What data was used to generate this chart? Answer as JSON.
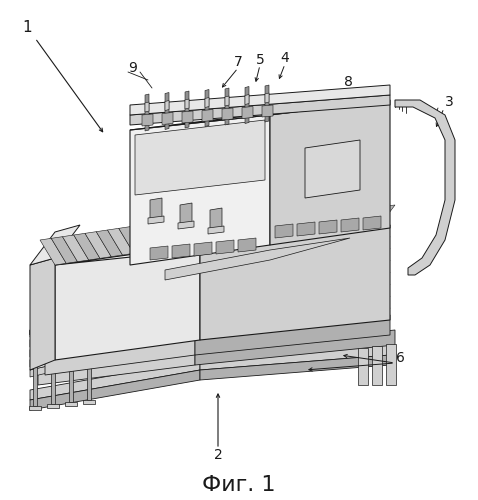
{
  "caption": "Фиг. 1",
  "caption_fontsize": 16,
  "bg_color": "#ffffff",
  "fig_width": 4.78,
  "fig_height": 5.0,
  "dpi": 100,
  "line_color": "#1a1a1a",
  "gray_light": "#e8e8e8",
  "gray_mid": "#d0d0d0",
  "gray_dark": "#b0b0b0",
  "gray_darker": "#909090"
}
